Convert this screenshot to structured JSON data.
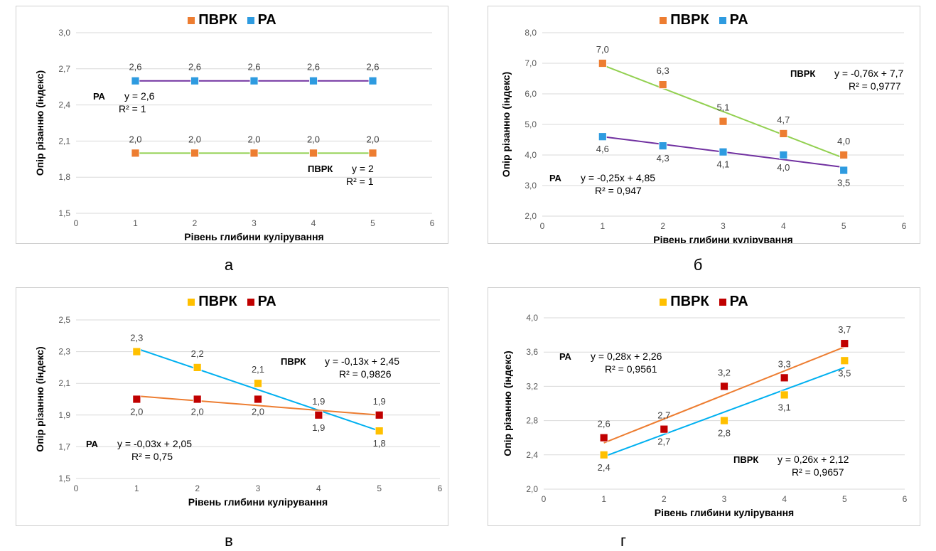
{
  "chart_data": [
    {
      "id": "a",
      "type": "scatter",
      "caption": "а",
      "xlabel": "Рівень глибини кулірування",
      "ylabel": "Опір різанню (індекс)",
      "xlim": [
        0,
        6
      ],
      "ylim": [
        1.5,
        3.0
      ],
      "yticks": [
        "1,5",
        "1,8",
        "2,1",
        "2,4",
        "2,7",
        "3,0"
      ],
      "ytick_values": [
        1.5,
        1.8,
        2.1,
        2.4,
        2.7,
        3.0
      ],
      "xticks": [
        "0",
        "1",
        "2",
        "3",
        "4",
        "5",
        "6"
      ],
      "series": [
        {
          "name": "ПВРК",
          "color": "#ed7d31",
          "trend_color": "#92d050",
          "x": [
            1,
            2,
            3,
            4,
            5
          ],
          "y": [
            2.0,
            2.0,
            2.0,
            2.0,
            2.0
          ],
          "labels": [
            "2,0",
            "2,0",
            "2,0",
            "2,0",
            "2,0"
          ],
          "label_pos": [
            "above",
            "above",
            "above",
            "above",
            "above"
          ],
          "trend": [
            0,
            2.0
          ],
          "eq_name": "ПВРК",
          "eq_text": "y = 2",
          "r2_text": "R² = 1"
        },
        {
          "name": "РА",
          "color": "#2e9be0",
          "trend_color": "#7030a0",
          "x": [
            1,
            2,
            3,
            4,
            5
          ],
          "y": [
            2.6,
            2.6,
            2.6,
            2.6,
            2.6
          ],
          "labels": [
            "2,6",
            "2,6",
            "2,6",
            "2,6",
            "2,6"
          ],
          "label_pos": [
            "above",
            "above",
            "above",
            "above",
            "above"
          ],
          "trend": [
            0,
            2.6
          ],
          "eq_name": "РА",
          "eq_text": "y = 2,6",
          "r2_text": "R² = 1"
        }
      ]
    },
    {
      "id": "b",
      "type": "scatter",
      "caption": "б",
      "xlabel": "Рівень глибини кулірування",
      "ylabel": "Опір різанню (індекс)",
      "xlim": [
        0,
        6
      ],
      "ylim": [
        2.0,
        8.0
      ],
      "yticks": [
        "2,0",
        "3,0",
        "4,0",
        "5,0",
        "6,0",
        "7,0",
        "8,0"
      ],
      "ytick_values": [
        2,
        3,
        4,
        5,
        6,
        7,
        8
      ],
      "xticks": [
        "0",
        "1",
        "2",
        "3",
        "4",
        "5",
        "6"
      ],
      "series": [
        {
          "name": "ПВРК",
          "color": "#ed7d31",
          "trend_color": "#92d050",
          "x": [
            1,
            2,
            3,
            4,
            5
          ],
          "y": [
            7.0,
            6.3,
            5.1,
            4.7,
            4.0
          ],
          "labels": [
            "7,0",
            "6,3",
            "5,1",
            "4,7",
            "4,0"
          ],
          "label_pos": [
            "above",
            "above",
            "above",
            "above",
            "above"
          ],
          "trend": [
            -0.76,
            7.7
          ],
          "eq_name": "ПВРК",
          "eq_text": "y = -0,76x + 7,7",
          "r2_text": "R² = 0,9777"
        },
        {
          "name": "РА",
          "color": "#2e9be0",
          "trend_color": "#7030a0",
          "x": [
            1,
            2,
            3,
            4,
            5
          ],
          "y": [
            4.6,
            4.3,
            4.1,
            4.0,
            3.5
          ],
          "labels": [
            "4,6",
            "4,3",
            "4,1",
            "4,0",
            "3,5"
          ],
          "label_pos": [
            "below",
            "below",
            "below",
            "below",
            "below"
          ],
          "trend": [
            -0.25,
            4.85
          ],
          "eq_name": "РА",
          "eq_text": "y = -0,25x + 4,85",
          "r2_text": "R² = 0,947"
        }
      ]
    },
    {
      "id": "c",
      "type": "scatter",
      "caption": "в",
      "xlabel": "Рівень глибини кулірування",
      "ylabel": "Опір різанню (індекс)",
      "xlim": [
        0,
        6
      ],
      "ylim": [
        1.5,
        2.5
      ],
      "yticks": [
        "1,5",
        "1,7",
        "1,9",
        "2,1",
        "2,3",
        "2,5"
      ],
      "ytick_values": [
        1.5,
        1.7,
        1.9,
        2.1,
        2.3,
        2.5
      ],
      "xticks": [
        "0",
        "1",
        "2",
        "3",
        "4",
        "5",
        "6"
      ],
      "series": [
        {
          "name": "ПВРК",
          "color": "#ffc000",
          "trend_color": "#00b0f0",
          "x": [
            1,
            2,
            3,
            4,
            5
          ],
          "y": [
            2.3,
            2.2,
            2.1,
            1.9,
            1.8
          ],
          "labels": [
            "2,3",
            "2,2",
            "2,1",
            "1,9",
            "1,8"
          ],
          "label_pos": [
            "above",
            "above",
            "above",
            "above",
            "below"
          ],
          "trend": [
            -0.13,
            2.45
          ],
          "eq_name": "ПВРК",
          "eq_text": "y = -0,13x + 2,45",
          "r2_text": "R² = 0,9826"
        },
        {
          "name": "РА",
          "color": "#c00000",
          "trend_color": "#ed7d31",
          "x": [
            1,
            2,
            3,
            4,
            5
          ],
          "y": [
            2.0,
            2.0,
            2.0,
            1.9,
            1.9
          ],
          "labels": [
            "2,0",
            "2,0",
            "2,0",
            "1,9",
            "1,9"
          ],
          "label_pos": [
            "below",
            "below",
            "below",
            "below",
            "above"
          ],
          "trend": [
            -0.03,
            2.05
          ],
          "eq_name": "РА",
          "eq_text": "y = -0,03x + 2,05",
          "r2_text": "R² = 0,75"
        }
      ]
    },
    {
      "id": "d",
      "type": "scatter",
      "caption": "г",
      "xlabel": "Рівень глибини кулірування",
      "ylabel": "Опір різанню (індекс)",
      "xlim": [
        0,
        6
      ],
      "ylim": [
        2.0,
        4.0
      ],
      "yticks": [
        "2,0",
        "2,4",
        "2,8",
        "3,2",
        "3,6",
        "4,0"
      ],
      "ytick_values": [
        2.0,
        2.4,
        2.8,
        3.2,
        3.6,
        4.0
      ],
      "xticks": [
        "0",
        "1",
        "2",
        "3",
        "4",
        "5",
        "6"
      ],
      "series": [
        {
          "name": "ПВРК",
          "color": "#ffc000",
          "trend_color": "#00b0f0",
          "x": [
            1,
            2,
            3,
            4,
            5
          ],
          "y": [
            2.4,
            2.7,
            2.8,
            3.1,
            3.5
          ],
          "labels": [
            "2,4",
            "2,7",
            "2,8",
            "3,1",
            "3,5"
          ],
          "label_pos": [
            "below",
            "below",
            "below",
            "below",
            "below"
          ],
          "trend": [
            0.26,
            2.12
          ],
          "eq_name": "ПВРК",
          "eq_text": "y = 0,26x + 2,12",
          "r2_text": "R² = 0,9657"
        },
        {
          "name": "РА",
          "color": "#c00000",
          "trend_color": "#ed7d31",
          "x": [
            1,
            2,
            3,
            4,
            5
          ],
          "y": [
            2.6,
            2.7,
            3.2,
            3.3,
            3.7
          ],
          "labels": [
            "2,6",
            "2,7",
            "3,2",
            "3,3",
            "3,7"
          ],
          "label_pos": [
            "above",
            "above",
            "above",
            "above",
            "above"
          ],
          "trend": [
            0.28,
            2.26
          ],
          "eq_name": "РА",
          "eq_text": "y = 0,28x + 2,26",
          "r2_text": "R² = 0,9561"
        }
      ]
    }
  ]
}
